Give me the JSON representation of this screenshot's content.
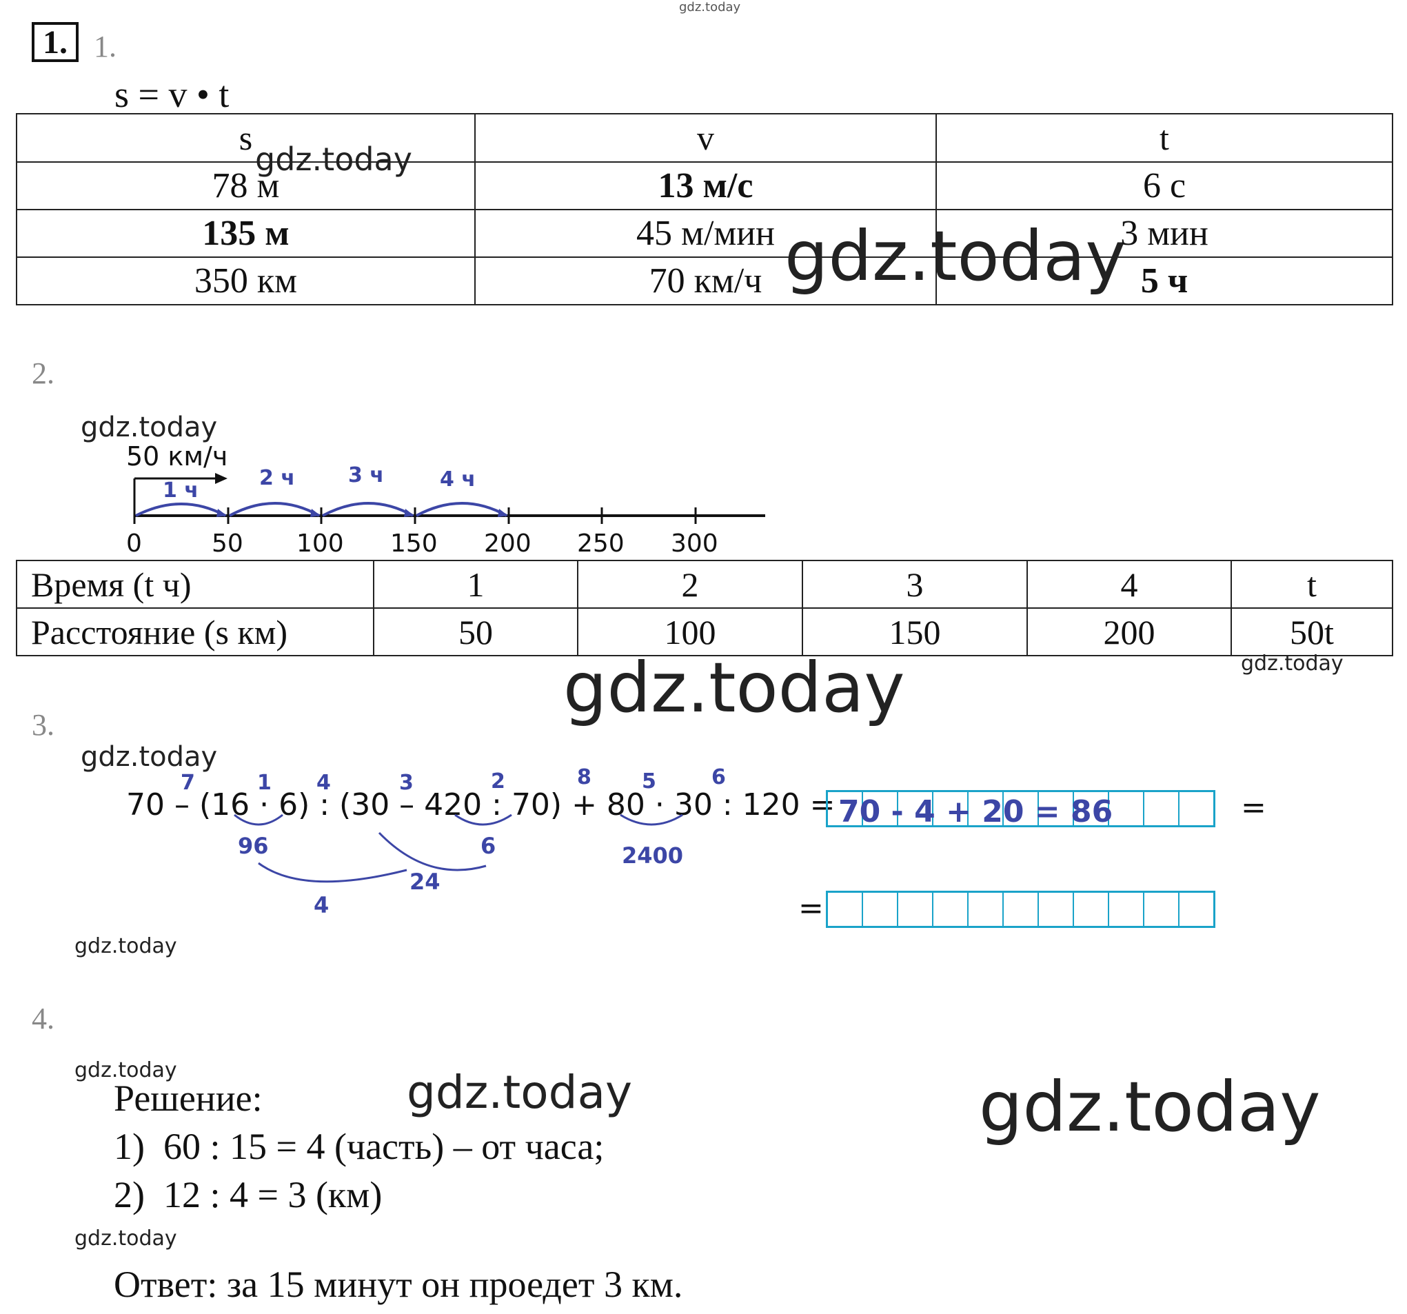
{
  "watermark": "gdz.today",
  "task1": {
    "number": "1.",
    "sub": "1.",
    "formula": "s = v • t",
    "headers": [
      "s",
      "v",
      "t"
    ],
    "rows": [
      [
        "78 м",
        "13 м/с",
        "6 с"
      ],
      [
        "135 м",
        "45 м/мин",
        "3 мин"
      ],
      [
        "350 км",
        "70 км/ч",
        "5 ч"
      ]
    ]
  },
  "task2": {
    "sub": "2.",
    "speed_label": "50 км/ч",
    "arc_labels": [
      "1 ч",
      "2 ч",
      "3 ч",
      "4 ч"
    ],
    "axis_ticks": [
      "0",
      "50",
      "100",
      "150",
      "200",
      "250",
      "300"
    ],
    "row1_label": "Время (t ч)",
    "row1_values": [
      "1",
      "2",
      "3",
      "4",
      "t"
    ],
    "row2_label": "Расстояние (s км)",
    "row2_values": [
      "50",
      "100",
      "150",
      "200",
      "50t"
    ]
  },
  "task3": {
    "sub": "3.",
    "expression": "70 – (16 · 6) : (30 – 420 : 70) + 80 · 30 : 120 =",
    "order_marks": [
      "7",
      "1",
      "4",
      "3",
      "2",
      "8",
      "5",
      "6"
    ],
    "intermediates": [
      "96",
      "6",
      "24",
      "4",
      "2400"
    ],
    "answer": "70 - 4 + 20 = 86",
    "eq1": "=",
    "eq2": "="
  },
  "task4": {
    "sub": "4.",
    "solution_title": "Решение:",
    "step1": "1)  60 : 15 = 4 (часть) – от часа;",
    "step2": "2)  12 : 4 = 3 (км)",
    "answer": "Ответ: за 15 минут он проедет 3 км."
  }
}
